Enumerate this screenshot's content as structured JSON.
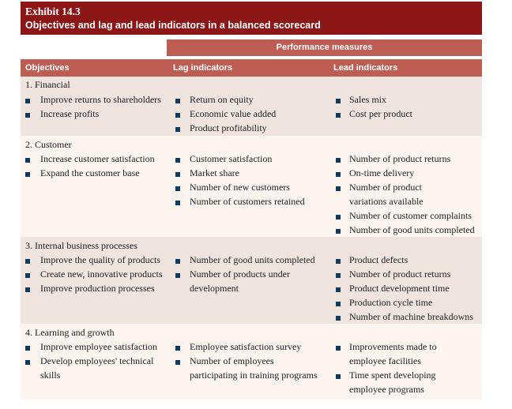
{
  "exhibit": {
    "number": "Exhibit 14.3",
    "title": "Objectives and lag and lead indicators in a balanced scorecard"
  },
  "header": {
    "performance_measures": "Performance measures",
    "col_objectives": "Objectives",
    "col_lag": "Lag indicators",
    "col_lead": "Lead indicators"
  },
  "sections": [
    {
      "title": "1.  Financial",
      "objectives": [
        "Improve returns to shareholders",
        "Increase profits"
      ],
      "lag": [
        "Return on equity",
        "Economic value added",
        "Product profitability"
      ],
      "lead": [
        "Sales mix",
        "Cost per product"
      ]
    },
    {
      "title": "2.  Customer",
      "objectives": [
        "Increase customer satisfaction",
        "Expand the customer base"
      ],
      "lag": [
        "Customer satisfaction",
        "Market share",
        "Number of new customers",
        "Number of customers retained"
      ],
      "lead": [
        "Number of product returns",
        "On-time delivery",
        "Number of product",
        "variations available",
        "Number of customer complaints",
        "Number of good units completed"
      ]
    },
    {
      "title": "3.  Internal business processes",
      "objectives": [
        "Improve the quality of products",
        "Create new, innovative products",
        "Improve production processes"
      ],
      "lag": [
        "Number of good units completed",
        "Number of products under",
        "development"
      ],
      "lead": [
        "Product defects",
        "Number of product returns",
        "Product development time",
        "Production cycle time",
        "Number of machine breakdowns"
      ]
    },
    {
      "title": "4.  Learning and growth",
      "objectives": [
        "Improve employee satisfaction",
        "Develop employees' technical",
        "skills"
      ],
      "lag": [
        "Employee satisfaction survey",
        "Number of employees",
        "participating in training programs"
      ],
      "lead": [
        "Improvements made to",
        "employee facilities",
        "Time spent developing",
        "employee programs"
      ]
    }
  ]
}
